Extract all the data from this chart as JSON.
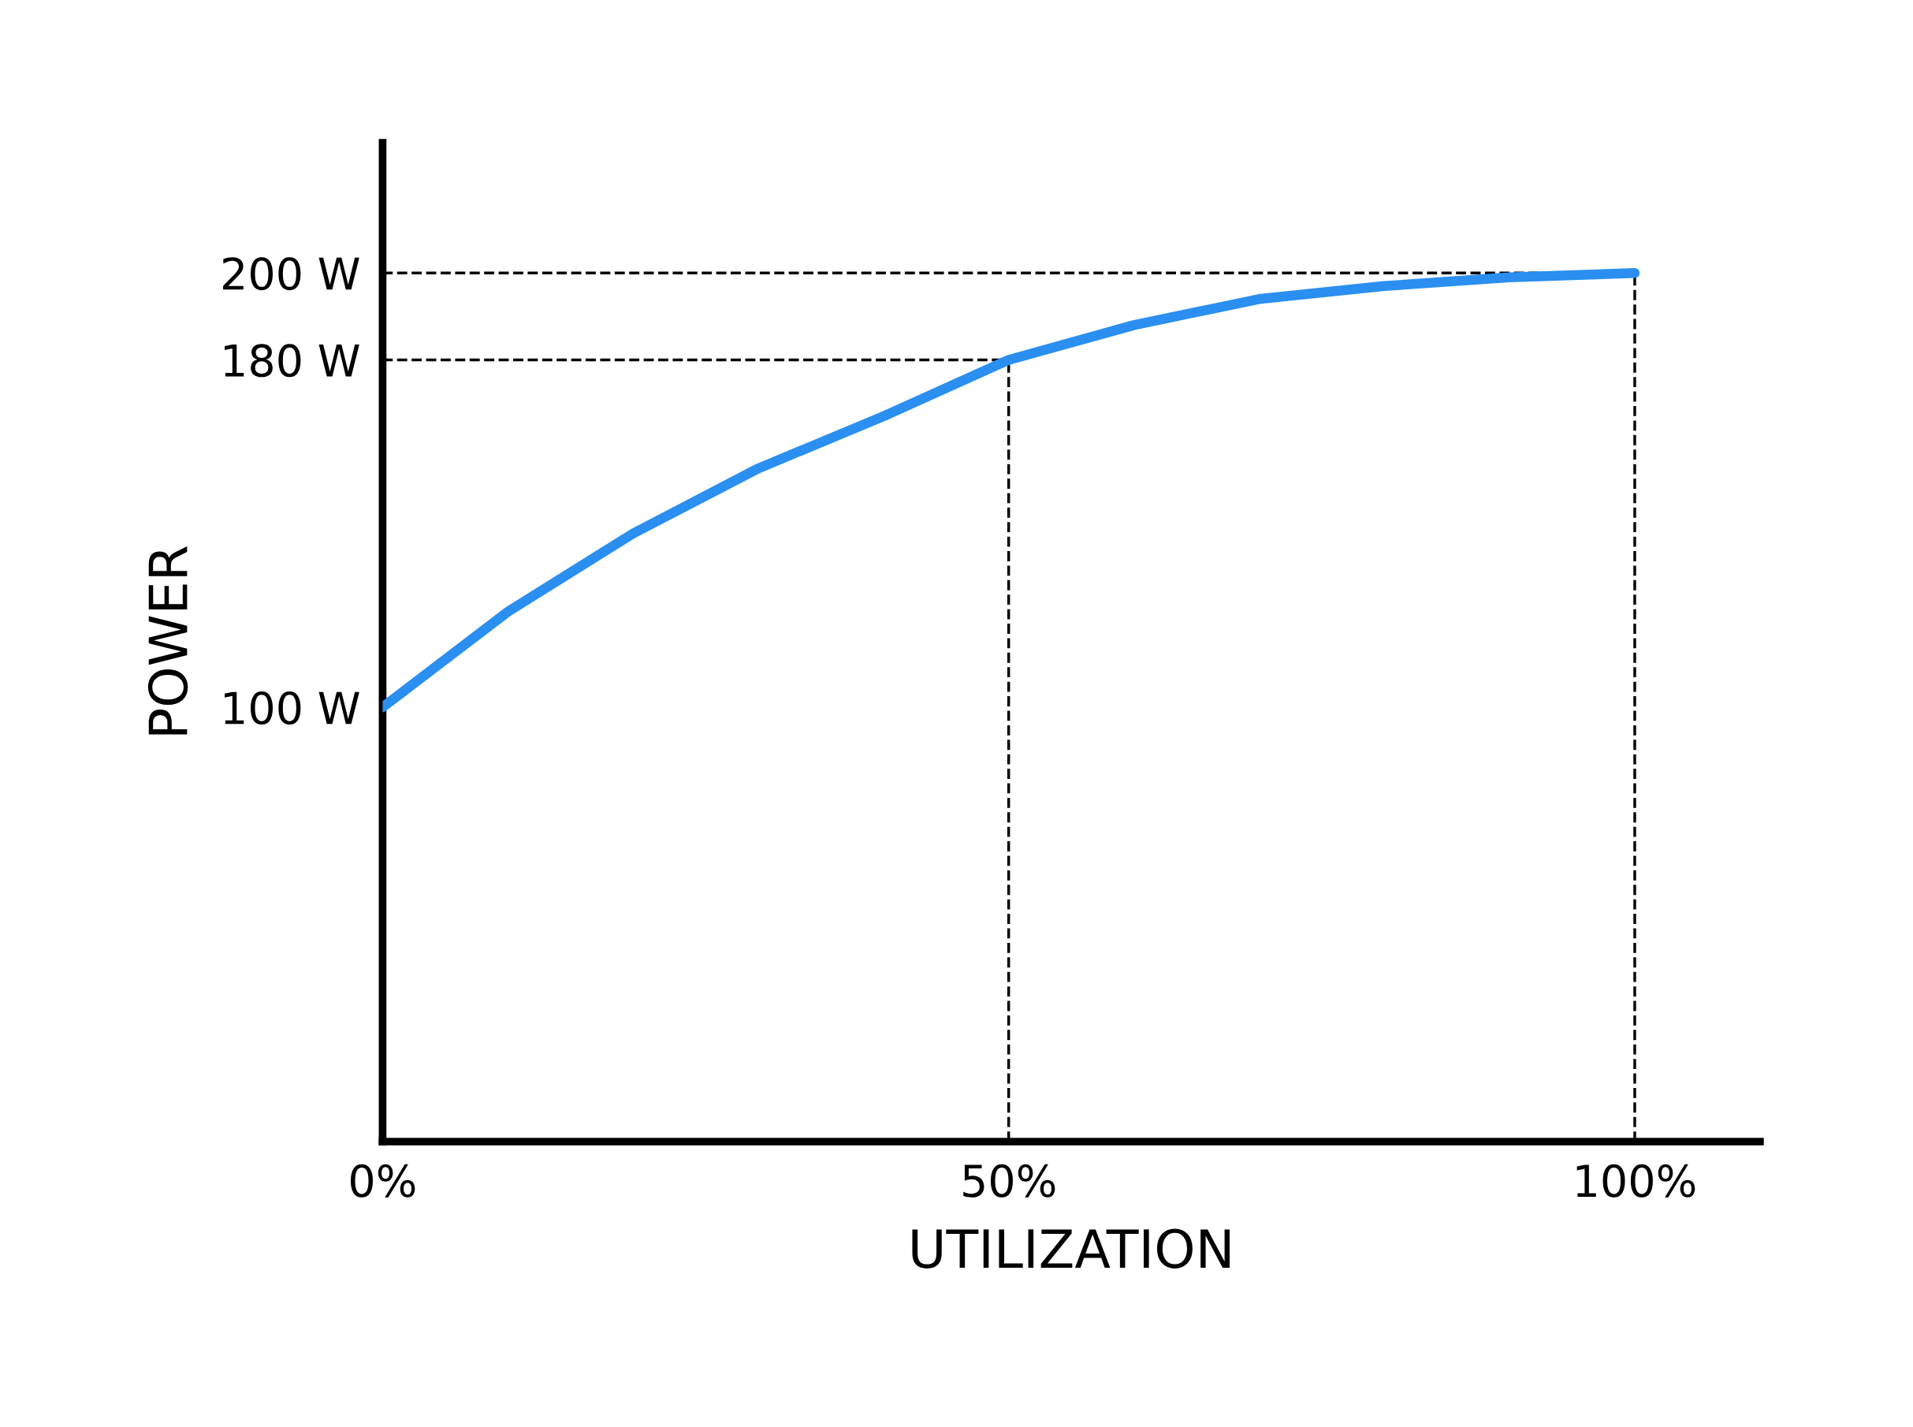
{
  "chart_data": {
    "type": "line",
    "xlabel": "UTILIZATION",
    "ylabel": "POWER",
    "x": [
      0,
      10,
      20,
      30,
      40,
      50,
      60,
      70,
      80,
      90,
      100
    ],
    "series": [
      {
        "color": "#2a8ff0",
        "values": [
          100,
          122,
          140,
          155,
          167,
          180,
          188,
          194,
          197,
          199,
          200
        ]
      }
    ],
    "xlim": [
      0,
      110
    ],
    "ylim": [
      0,
      230
    ],
    "xticks": [
      {
        "value": 0,
        "label": "0%"
      },
      {
        "value": 50,
        "label": "50%"
      },
      {
        "value": 100,
        "label": "100%"
      }
    ],
    "yticks": [
      {
        "value": 100,
        "label": "100 W"
      },
      {
        "value": 180,
        "label": "180 W"
      },
      {
        "value": 200,
        "label": "200 W"
      }
    ],
    "ref_lines": [
      {
        "axis": "y",
        "value": 200,
        "color": "#000000",
        "line_style": "dashed"
      },
      {
        "axis": "y",
        "value": 180,
        "color": "#000000",
        "line_style": "dashed"
      },
      {
        "axis": "x",
        "value": 50,
        "color": "#000000",
        "line_style": "dashed"
      },
      {
        "axis": "x",
        "value": 100,
        "color": "#000000",
        "line_style": "dashed"
      }
    ],
    "grid": false,
    "legend": false,
    "marker": "none",
    "line_style": "solid"
  }
}
